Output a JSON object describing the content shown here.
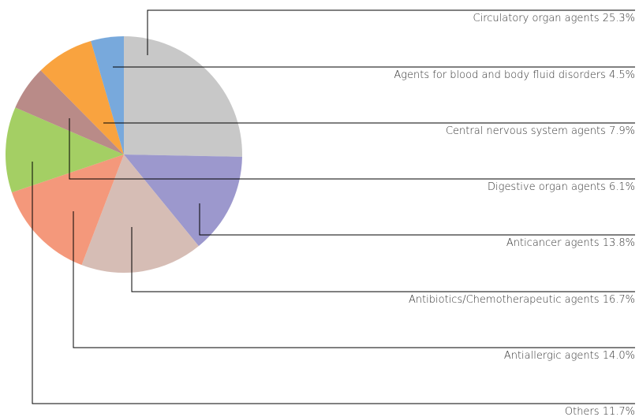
{
  "chart_data": {
    "type": "pie",
    "categories": [
      "Circulatory organ agents",
      "Anticancer agents",
      "Antibiotics/Chemotherapeutic agents",
      "Antiallergic agents",
      "Others",
      "Digestive organ agents",
      "Central nervous system agents",
      "Agents for blood and body fluid disorders"
    ],
    "values": [
      25.3,
      13.8,
      16.7,
      14.0,
      11.7,
      6.1,
      7.9,
      4.5
    ],
    "value_labels": [
      "25.3%",
      "13.8%",
      "16.7%",
      "14.0%",
      "11.7%",
      "6.1%",
      "7.9%",
      "4.5%"
    ],
    "colors": [
      "#c8c8c8",
      "#9c98cd",
      "#d6bdb5",
      "#f4987b",
      "#a4cf64",
      "#b98b88",
      "#f9a33f",
      "#78a9dc"
    ]
  }
}
